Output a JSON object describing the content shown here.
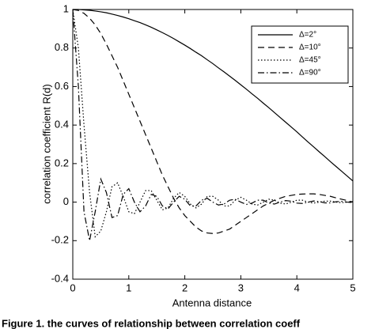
{
  "chart_data": {
    "type": "line",
    "xlabel": "Antenna distance",
    "ylabel": "correlation coefficient R(d)",
    "caption": "Figure 1. the curves of relationship between correlation coeff",
    "xlim": [
      0,
      5
    ],
    "xticks": [
      0,
      1,
      2,
      3,
      4,
      5
    ],
    "ylim": [
      -0.4,
      1
    ],
    "yticks": [
      -0.4,
      -0.2,
      0,
      0.2,
      0.4,
      0.6,
      0.8,
      1
    ],
    "grid": false,
    "legend": "upper right",
    "x": [
      0,
      0.1,
      0.2,
      0.3,
      0.4,
      0.5,
      0.6,
      0.7,
      0.8,
      0.9,
      1,
      1.1,
      1.2,
      1.3,
      1.4,
      1.5,
      1.6,
      1.7,
      1.8,
      1.9,
      2,
      2.1,
      2.2,
      2.3,
      2.4,
      2.5,
      2.6,
      2.7,
      2.8,
      2.9,
      3,
      3.1,
      3.2,
      3.3,
      3.4,
      3.5,
      3.6,
      3.7,
      3.8,
      3.9,
      4,
      4.1,
      4.2,
      4.3,
      4.4,
      4.5,
      4.6,
      4.7,
      4.8,
      4.9,
      5
    ],
    "series": [
      {
        "name": "Δ=2°",
        "color": "#000000",
        "linestyle": "solid",
        "values": [
          1,
          1,
          0.998,
          0.996,
          0.992,
          0.988,
          0.983,
          0.976,
          0.969,
          0.961,
          0.952,
          0.942,
          0.932,
          0.92,
          0.908,
          0.894,
          0.88,
          0.865,
          0.849,
          0.832,
          0.815,
          0.797,
          0.778,
          0.76,
          0.739,
          0.719,
          0.697,
          0.676,
          0.654,
          0.632,
          0.609,
          0.586,
          0.562,
          0.539,
          0.514,
          0.49,
          0.465,
          0.44,
          0.415,
          0.39,
          0.365,
          0.338,
          0.312,
          0.287,
          0.261,
          0.236,
          0.21,
          0.185,
          0.16,
          0.135,
          0.11
        ]
      },
      {
        "name": "Δ=10°",
        "color": "#000000",
        "linestyle": "dashed",
        "values": [
          1,
          0.995,
          0.98,
          0.955,
          0.92,
          0.875,
          0.82,
          0.76,
          0.7,
          0.63,
          0.56,
          0.49,
          0.42,
          0.35,
          0.28,
          0.21,
          0.14,
          0.08,
          0.02,
          -0.03,
          -0.07,
          -0.1,
          -0.13,
          -0.15,
          -0.16,
          -0.163,
          -0.16,
          -0.15,
          -0.14,
          -0.12,
          -0.1,
          -0.08,
          -0.06,
          -0.04,
          -0.02,
          -0.005,
          0.01,
          0.02,
          0.03,
          0.035,
          0.04,
          0.042,
          0.043,
          0.043,
          0.04,
          0.035,
          0.03,
          0.022,
          0.015,
          0.008,
          0
        ]
      },
      {
        "name": "Δ=45°",
        "color": "#000000",
        "linestyle": "dotted",
        "values": [
          1,
          0.8,
          0.4,
          0.05,
          -0.18,
          -0.15,
          -0.05,
          0.08,
          0.1,
          0.03,
          -0.05,
          -0.06,
          0,
          0.06,
          0.06,
          0.01,
          -0.04,
          -0.03,
          0.02,
          0.05,
          0.03,
          -0.01,
          -0.03,
          -0.01,
          0.03,
          0.03,
          0.01,
          -0.02,
          -0.02,
          0.01,
          0.025,
          0.01,
          -0.01,
          -0.015,
          0,
          0.015,
          0.01,
          -0.005,
          -0.01,
          0,
          0.01,
          0.01,
          0,
          -0.005,
          0,
          0.005,
          0.005,
          0,
          -0.003,
          0,
          0.003
        ]
      },
      {
        "name": "Δ=90°",
        "color": "#000000",
        "linestyle": "dashdot",
        "values": [
          1,
          0.6,
          -0.05,
          -0.2,
          -0.05,
          0.12,
          0.05,
          -0.08,
          -0.07,
          0.04,
          0.07,
          0,
          -0.05,
          -0.02,
          0.04,
          0.03,
          -0.02,
          -0.035,
          0,
          0.03,
          0.015,
          -0.02,
          -0.02,
          0.01,
          0.02,
          0,
          -0.015,
          -0.01,
          0.01,
          0.015,
          0,
          -0.012,
          -0.005,
          0.01,
          0.01,
          -0.005,
          -0.01,
          0,
          0.008,
          0.005,
          -0.005,
          -0.007,
          0,
          0.006,
          0.003,
          -0.004,
          -0.004,
          0.002,
          0.004,
          0,
          -0.003
        ]
      }
    ]
  }
}
